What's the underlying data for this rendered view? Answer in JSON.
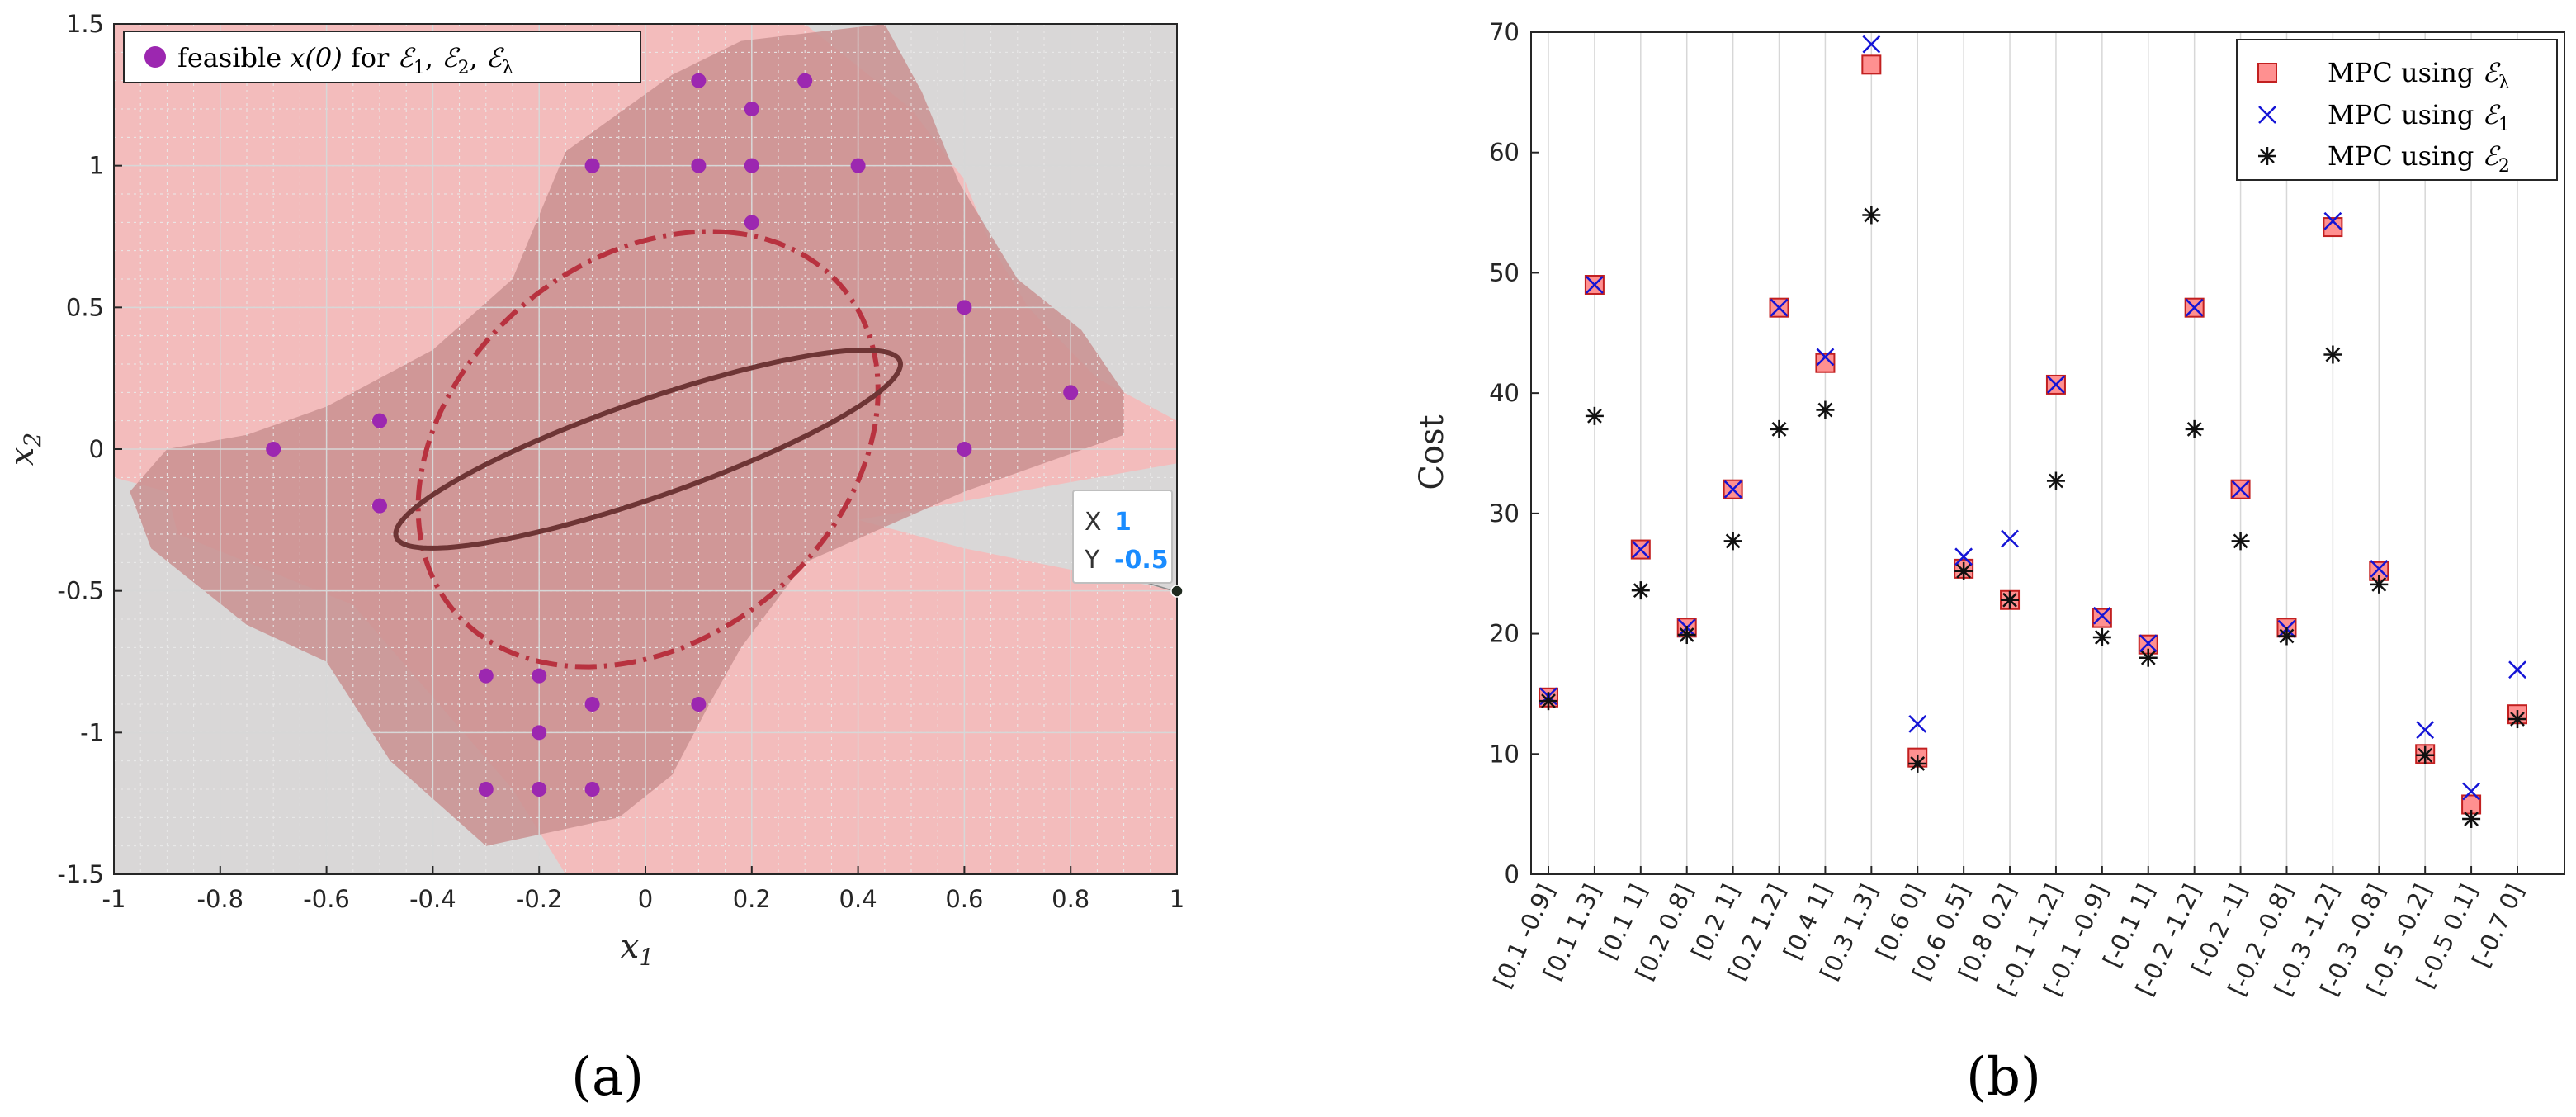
{
  "colors": {
    "light_region": "#f3bcbc",
    "dark_region": "#c99090",
    "gray_bg": "#d9d7d7",
    "point": "#9c27b0",
    "solid_ellipse": "#6e3535",
    "dashdot_ellipse": "#b8323f",
    "square_fill": "#ff9090",
    "square_edge": "#c22020",
    "cross": "#1414d6",
    "star": "#111111",
    "datatip_value": "#1a8cff"
  },
  "chart_data": [
    {
      "type": "scatter",
      "panel_label": "(a)",
      "xlabel": "x",
      "xlabel_sub": "1",
      "ylabel": "x",
      "ylabel_sub": "2",
      "xlim": [
        -1,
        1
      ],
      "ylim": [
        -1.5,
        1.5
      ],
      "x_ticks": [
        -1,
        -0.8,
        -0.6,
        -0.4,
        -0.2,
        0,
        0.2,
        0.4,
        0.6,
        0.8,
        1
      ],
      "x_tick_labels": [
        "-1",
        "-0.8",
        "-0.6",
        "-0.4",
        "-0.2",
        "0",
        "0.2",
        "0.4",
        "0.6",
        "0.8",
        "1"
      ],
      "y_ticks": [
        -1.5,
        -1,
        -0.5,
        0,
        0.5,
        1,
        1.5
      ],
      "y_tick_labels": [
        "-1.5",
        "-1",
        "-0.5",
        "0",
        "0.5",
        "1",
        "1.5"
      ],
      "legend": {
        "prefix": "feasible ",
        "math": "x(0)",
        "middle": " for ",
        "sets": [
          "ℰ",
          "ℰ",
          "ℰ"
        ],
        "set_subs": [
          "1",
          "2",
          "λ"
        ],
        "sep": ", "
      },
      "feasible_points": [
        [
          -0.7,
          0
        ],
        [
          -0.5,
          0.1
        ],
        [
          -0.5,
          -0.2
        ],
        [
          -0.1,
          1
        ],
        [
          0.1,
          1.3
        ],
        [
          0.1,
          1
        ],
        [
          0.2,
          1.2
        ],
        [
          0.2,
          1
        ],
        [
          0.2,
          0.8
        ],
        [
          0.3,
          1.3
        ],
        [
          0.4,
          1
        ],
        [
          0.6,
          0.5
        ],
        [
          0.6,
          0
        ],
        [
          0.8,
          0.2
        ],
        [
          -0.3,
          -0.8
        ],
        [
          -0.2,
          -0.8
        ],
        [
          -0.2,
          -1
        ],
        [
          -0.1,
          -0.9
        ],
        [
          0.1,
          -0.9
        ],
        [
          -0.3,
          -1.2
        ],
        [
          -0.2,
          -1.2
        ],
        [
          -0.1,
          -1.2
        ]
      ],
      "light_region": [
        [
          -1,
          1.5
        ],
        [
          -1,
          -0.1
        ],
        [
          -0.9,
          -0.15
        ],
        [
          -0.88,
          -0.3
        ],
        [
          -0.55,
          -0.55
        ],
        [
          -0.25,
          -1.2
        ],
        [
          -0.15,
          -1.5
        ],
        [
          1,
          -1.5
        ],
        [
          1,
          -0.5
        ],
        [
          0.6,
          -0.35
        ],
        [
          0.5,
          -0.3
        ],
        [
          0.4,
          -0.25
        ],
        [
          1,
          -0.05
        ],
        [
          1,
          0.1
        ],
        [
          0.85,
          0.25
        ],
        [
          0.72,
          0.5
        ],
        [
          0.65,
          0.72
        ],
        [
          0.6,
          0.95
        ],
        [
          0.5,
          1.2
        ],
        [
          0.3,
          1.5
        ]
      ],
      "dark_region": [
        [
          -0.9,
          0
        ],
        [
          -0.75,
          0.05
        ],
        [
          -0.6,
          0.15
        ],
        [
          -0.4,
          0.35
        ],
        [
          -0.25,
          0.6
        ],
        [
          -0.15,
          1.05
        ],
        [
          0.05,
          1.32
        ],
        [
          0.18,
          1.44
        ],
        [
          0.45,
          1.5
        ],
        [
          0.52,
          1.26
        ],
        [
          0.59,
          0.94
        ],
        [
          0.7,
          0.6
        ],
        [
          0.82,
          0.42
        ],
        [
          0.9,
          0.2
        ],
        [
          0.9,
          0.05
        ],
        [
          0.6,
          -0.15
        ],
        [
          0.3,
          -0.4
        ],
        [
          0.18,
          -0.7
        ],
        [
          0.12,
          -0.9
        ],
        [
          0.05,
          -1.15
        ],
        [
          -0.05,
          -1.3
        ],
        [
          -0.3,
          -1.4
        ],
        [
          -0.48,
          -1.1
        ],
        [
          -0.6,
          -0.75
        ],
        [
          -0.75,
          -0.62
        ],
        [
          -0.93,
          -0.35
        ],
        [
          -0.97,
          -0.15
        ]
      ],
      "ellipse_solid": {
        "center": [
          0.005,
          0.0
        ],
        "semi_axes": [
          0.57,
          0.15
        ],
        "angle_deg": 35
      },
      "ellipse_dashdot": {
        "center": [
          0.005,
          0.0
        ],
        "semi_axes": [
          0.78,
          0.41
        ],
        "angle_deg": 78
      },
      "datatip": {
        "x_label": "X",
        "x_value": "1",
        "y_label": "Y",
        "y_value": "-0.5",
        "point": [
          1,
          -0.5
        ]
      }
    },
    {
      "type": "scatter",
      "panel_label": "(b)",
      "xlabel": "",
      "ylabel": "Cost",
      "ylim": [
        0,
        70
      ],
      "y_ticks": [
        0,
        10,
        20,
        30,
        40,
        50,
        60,
        70
      ],
      "y_tick_labels": [
        "0",
        "10",
        "20",
        "30",
        "40",
        "50",
        "60",
        "70"
      ],
      "categories": [
        "[0.1 -0.9]",
        "[0.1 1.3]",
        "[0.1 1]",
        "[0.2 0.8]",
        "[0.2 1]",
        "[0.2 1.2]",
        "[0.4 1]",
        "[0.3 1.3]",
        "[0.6 0]",
        "[0.6 0.5]",
        "[0.8 0.2]",
        "[-0.1 -1.2]",
        "[-0.1 -0.9]",
        "[-0.1 1]",
        "[-0.2 -1.2]",
        "[-0.2 -1]",
        "[-0.2 -0.8]",
        "[-0.3 -1.2]",
        "[-0.3 -0.8]",
        "[-0.5 -0.2]",
        "[-0.5 0.1]",
        "[-0.7 0]"
      ],
      "series": [
        {
          "name": "MPC using ",
          "set": "ℰ",
          "sub": "λ",
          "marker": "square",
          "values": [
            14.7,
            49,
            27,
            20.5,
            32,
            47.1,
            42.5,
            67.3,
            9.7,
            25.4,
            22.8,
            40.7,
            21.3,
            19.1,
            47.1,
            32,
            20.5,
            53.8,
            25.2,
            10,
            5.8,
            13.3
          ]
        },
        {
          "name": "MPC using ",
          "set": "ℰ",
          "sub": "1",
          "marker": "x",
          "values": [
            14.8,
            49,
            27,
            20.5,
            32,
            47.1,
            43,
            69,
            12.5,
            26.4,
            27.9,
            40.7,
            21.5,
            19.2,
            47.1,
            32,
            20.4,
            54.3,
            25.4,
            12,
            6.9,
            17
          ]
        },
        {
          "name": "MPC using ",
          "set": "ℰ",
          "sub": "2",
          "marker": "star",
          "values": [
            14.4,
            38.1,
            23.6,
            19.9,
            27.7,
            37,
            38.6,
            54.8,
            9.2,
            25.2,
            22.8,
            32.7,
            19.7,
            18,
            37,
            27.7,
            19.8,
            43.2,
            24.1,
            9.9,
            4.6,
            12.9
          ]
        }
      ]
    }
  ]
}
